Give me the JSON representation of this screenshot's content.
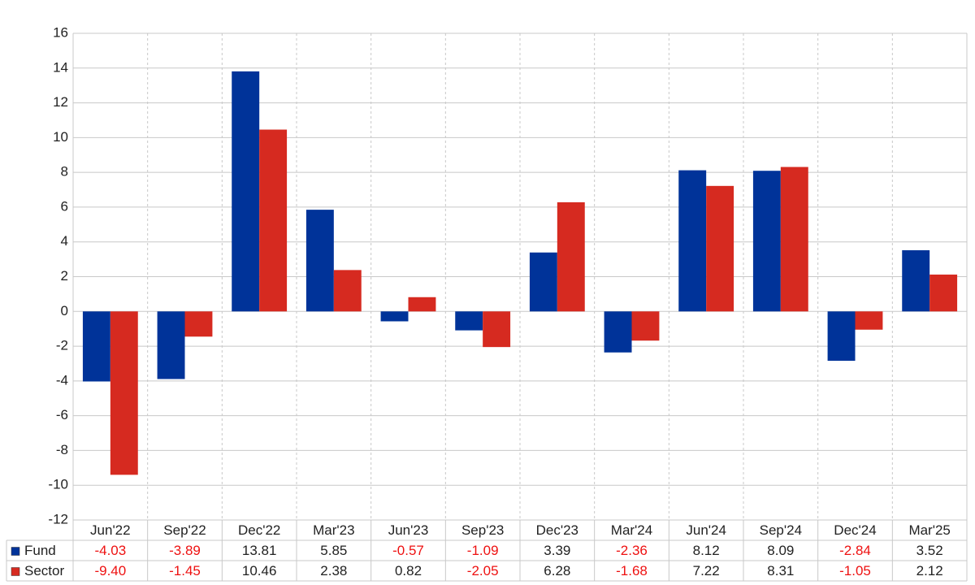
{
  "chart_data": {
    "type": "bar",
    "categories": [
      "Jun'22",
      "Sep'22",
      "Dec'22",
      "Mar'23",
      "Jun'23",
      "Sep'23",
      "Dec'23",
      "Mar'24",
      "Jun'24",
      "Sep'24",
      "Dec'24",
      "Mar'25"
    ],
    "series": [
      {
        "name": "Fund",
        "color": "#003399",
        "values": [
          -4.03,
          -3.89,
          13.81,
          5.85,
          -0.57,
          -1.09,
          3.39,
          -2.36,
          8.12,
          8.09,
          -2.84,
          3.52
        ],
        "value_labels": [
          "-4.03",
          "-3.89",
          "13.81",
          "5.85",
          "-0.57",
          "-1.09",
          "3.39",
          "-2.36",
          "8.12",
          "8.09",
          "-2.84",
          "3.52"
        ]
      },
      {
        "name": "Sector",
        "color": "#d62a20",
        "values": [
          -9.4,
          -1.45,
          10.46,
          2.38,
          0.82,
          -2.05,
          6.28,
          -1.68,
          7.22,
          8.31,
          -1.05,
          2.12
        ],
        "value_labels": [
          "-9.40",
          "-1.45",
          "10.46",
          "2.38",
          "0.82",
          "-2.05",
          "6.28",
          "-1.68",
          "7.22",
          "8.31",
          "-1.05",
          "2.12"
        ]
      }
    ],
    "ylim": [
      -12,
      16
    ],
    "yticks": [
      -12,
      -10,
      -8,
      -6,
      -4,
      -2,
      0,
      2,
      4,
      6,
      8,
      10,
      12,
      14,
      16
    ],
    "grid": true,
    "negative_label_color": "#ee1111"
  }
}
